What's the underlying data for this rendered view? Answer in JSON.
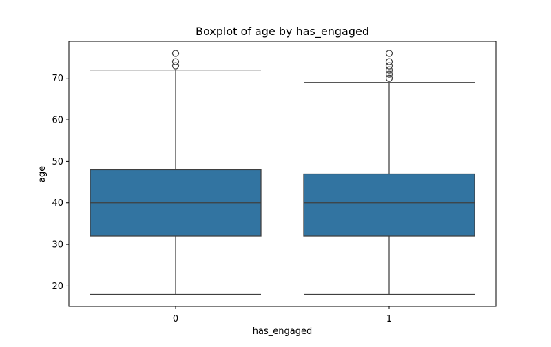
{
  "chart_data": {
    "type": "boxplot",
    "title": "Boxplot of age by has_engaged",
    "xlabel": "has_engaged",
    "ylabel": "age",
    "categories": [
      "0",
      "1"
    ],
    "ylim": [
      15.1,
      78.9
    ],
    "yticks": [
      20,
      30,
      40,
      50,
      60,
      70
    ],
    "grid": false,
    "box_color": "#3274a1",
    "line_color": "#3f3f3f",
    "boxes": [
      {
        "category": "0",
        "whisker_low": 18,
        "q1": 32,
        "median": 40,
        "q3": 48,
        "whisker_high": 72,
        "outliers": [
          73,
          74,
          76
        ]
      },
      {
        "category": "1",
        "whisker_low": 18,
        "q1": 32,
        "median": 40,
        "q3": 47,
        "whisker_high": 69,
        "outliers": [
          70,
          71,
          72,
          73,
          74,
          76
        ]
      }
    ]
  }
}
